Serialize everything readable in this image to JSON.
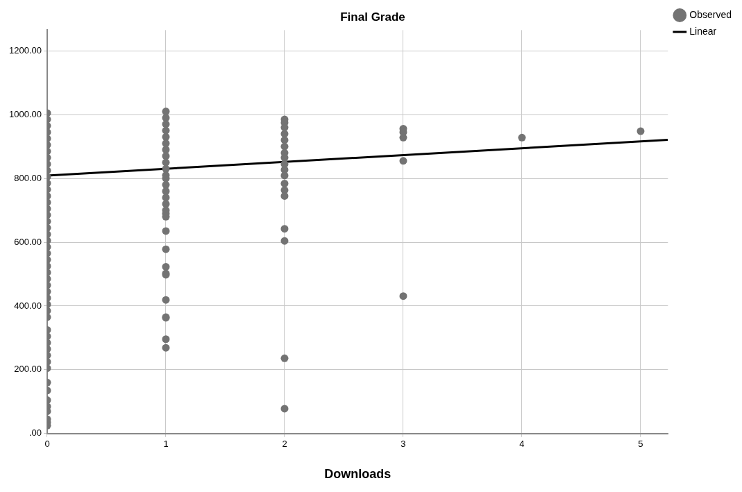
{
  "chart_data": {
    "type": "scatter",
    "title": "Final Grade",
    "xlabel": "Downloads",
    "xlim": [
      0,
      5.23
    ],
    "xticks": [
      0,
      1,
      2,
      3,
      4,
      5
    ],
    "ylim": [
      0,
      1265
    ],
    "yticks": [
      {
        "value": 0,
        "label": ".00"
      },
      {
        "value": 200,
        "label": "200.00"
      },
      {
        "value": 400,
        "label": "400.00"
      },
      {
        "value": 600,
        "label": "600.00"
      },
      {
        "value": 800,
        "label": "800.00"
      },
      {
        "value": 1000,
        "label": "1000.00"
      },
      {
        "value": 1200,
        "label": "1200.00"
      }
    ],
    "grid": true,
    "legend": "top right",
    "line_style": "solid",
    "series": [
      {
        "name": "Observed",
        "type": "scatter",
        "marker": "circle",
        "color": "#737373",
        "x": [
          0,
          0,
          0,
          0,
          0,
          0,
          0,
          0,
          0,
          0,
          0,
          0,
          0,
          0,
          0,
          0,
          0,
          0,
          0,
          0,
          0,
          0,
          0,
          0,
          0,
          0,
          0,
          0,
          0,
          0,
          0,
          0,
          0,
          0,
          0,
          0,
          0,
          0,
          0,
          0,
          0,
          0,
          0,
          0,
          0,
          0,
          0,
          0,
          1,
          1,
          1,
          1,
          1,
          1,
          1,
          1,
          1,
          1,
          1,
          1,
          1,
          1,
          1,
          1,
          1,
          1,
          1,
          1,
          1,
          1,
          1,
          1,
          1,
          1,
          1,
          1,
          1,
          2,
          2,
          2,
          2,
          2,
          2,
          2,
          2,
          2,
          2,
          2,
          2,
          2,
          2,
          2,
          2,
          2,
          2,
          3,
          3,
          3,
          3,
          3,
          4,
          5
        ],
        "values": [
          1005,
          985,
          965,
          945,
          925,
          905,
          885,
          865,
          845,
          825,
          805,
          785,
          765,
          745,
          725,
          705,
          685,
          665,
          645,
          625,
          605,
          585,
          565,
          545,
          525,
          505,
          485,
          465,
          445,
          425,
          405,
          385,
          365,
          325,
          305,
          285,
          265,
          245,
          225,
          205,
          160,
          135,
          105,
          85,
          70,
          45,
          35,
          25,
          1010,
          990,
          970,
          950,
          930,
          910,
          890,
          870,
          850,
          830,
          810,
          800,
          780,
          760,
          740,
          720,
          700,
          690,
          680,
          635,
          578,
          523,
          502,
          498,
          419,
          365,
          363,
          296,
          269,
          985,
          975,
          960,
          940,
          920,
          900,
          880,
          865,
          845,
          827,
          809,
          784,
          763,
          745,
          642,
          604,
          236,
          78,
          956,
          945,
          928,
          855,
          431,
          928,
          948
        ]
      },
      {
        "name": "Linear",
        "type": "line",
        "marker": "none",
        "color": "#000000",
        "x": [
          0,
          5.23
        ],
        "values": [
          809,
          921
        ]
      }
    ]
  }
}
